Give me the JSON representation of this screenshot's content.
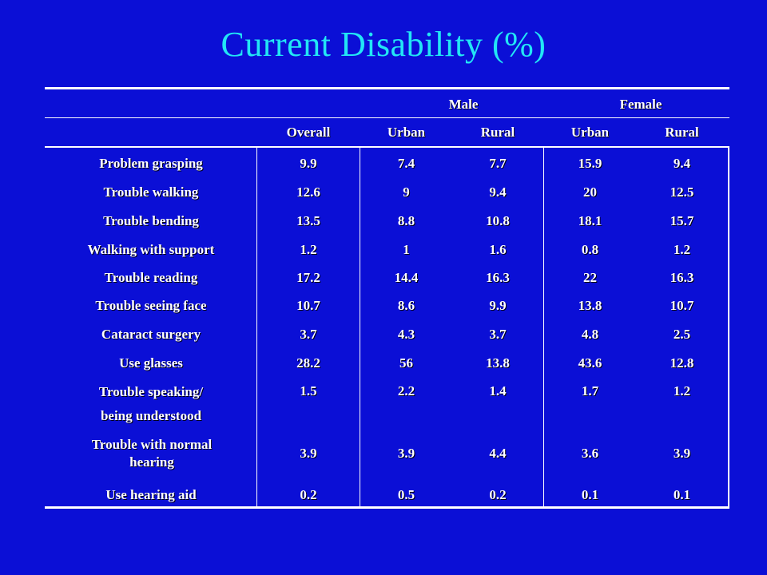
{
  "title": "Current Disability (%)",
  "header": {
    "male": "Male",
    "female": "Female",
    "columns": [
      "Overall",
      "Urban",
      "Rural",
      "Urban",
      "Rural"
    ]
  },
  "rows": [
    {
      "label": "Problem grasping",
      "values": [
        "9.9",
        "7.4",
        "7.7",
        "15.9",
        "9.4"
      ]
    },
    {
      "label": "Trouble walking",
      "values": [
        "12.6",
        "9",
        "9.4",
        "20",
        "12.5"
      ]
    },
    {
      "label": "Trouble bending",
      "values": [
        "13.5",
        "8.8",
        "10.8",
        "18.1",
        "15.7"
      ]
    },
    {
      "label": "Walking with support",
      "values": [
        "1.2",
        "1",
        "1.6",
        "0.8",
        "1.2"
      ]
    },
    {
      "label": "Trouble reading",
      "values": [
        "17.2",
        "14.4",
        "16.3",
        "22",
        "16.3"
      ]
    },
    {
      "label": "Trouble seeing face",
      "values": [
        "10.7",
        "8.6",
        "9.9",
        "13.8",
        "10.7"
      ]
    },
    {
      "label": "Cataract surgery",
      "values": [
        "3.7",
        "4.3",
        "3.7",
        "4.8",
        "2.5"
      ]
    },
    {
      "label": "Use glasses",
      "values": [
        "28.2",
        "56",
        "13.8",
        "43.6",
        "12.8"
      ]
    },
    {
      "label_line1": "Trouble speaking/",
      "label_line2": "being understood",
      "values": [
        "1.5",
        "2.2",
        "1.4",
        "1.7",
        "1.2"
      ]
    },
    {
      "label": "Trouble with normal hearing",
      "values": [
        "3.9",
        "3.9",
        "4.4",
        "3.6",
        "3.9"
      ]
    },
    {
      "label": "Use hearing aid",
      "values": [
        "0.2",
        "0.5",
        "0.2",
        "0.1",
        "0.1"
      ]
    }
  ]
}
